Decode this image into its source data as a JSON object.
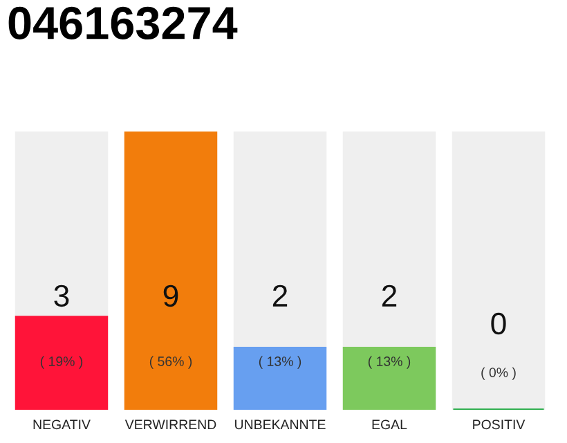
{
  "chart_data": {
    "type": "bar",
    "title": "046163274",
    "stacked": true,
    "ylim": [
      0,
      9
    ],
    "tick_labels": "x",
    "categories": [
      "NEGATIV",
      "VERWIRREND",
      "UNBEKANNTE",
      "EGAL",
      "POSITIV"
    ],
    "series": [
      {
        "colors": [
          "#ff1439",
          "#f27d0c",
          "#679ff0",
          "#7dc95d",
          "#22aa44"
        ],
        "values": [
          3,
          9,
          2,
          2,
          0
        ],
        "value_labels": [
          "3",
          "9",
          "2",
          "2",
          "0"
        ]
      },
      {
        "color": "#efefef",
        "values": [
          6,
          0,
          7,
          7,
          9
        ]
      }
    ],
    "annotations": [
      "( 19% )",
      "( 56% )",
      "( 13% )",
      "( 13% )",
      "( 0% )"
    ]
  }
}
